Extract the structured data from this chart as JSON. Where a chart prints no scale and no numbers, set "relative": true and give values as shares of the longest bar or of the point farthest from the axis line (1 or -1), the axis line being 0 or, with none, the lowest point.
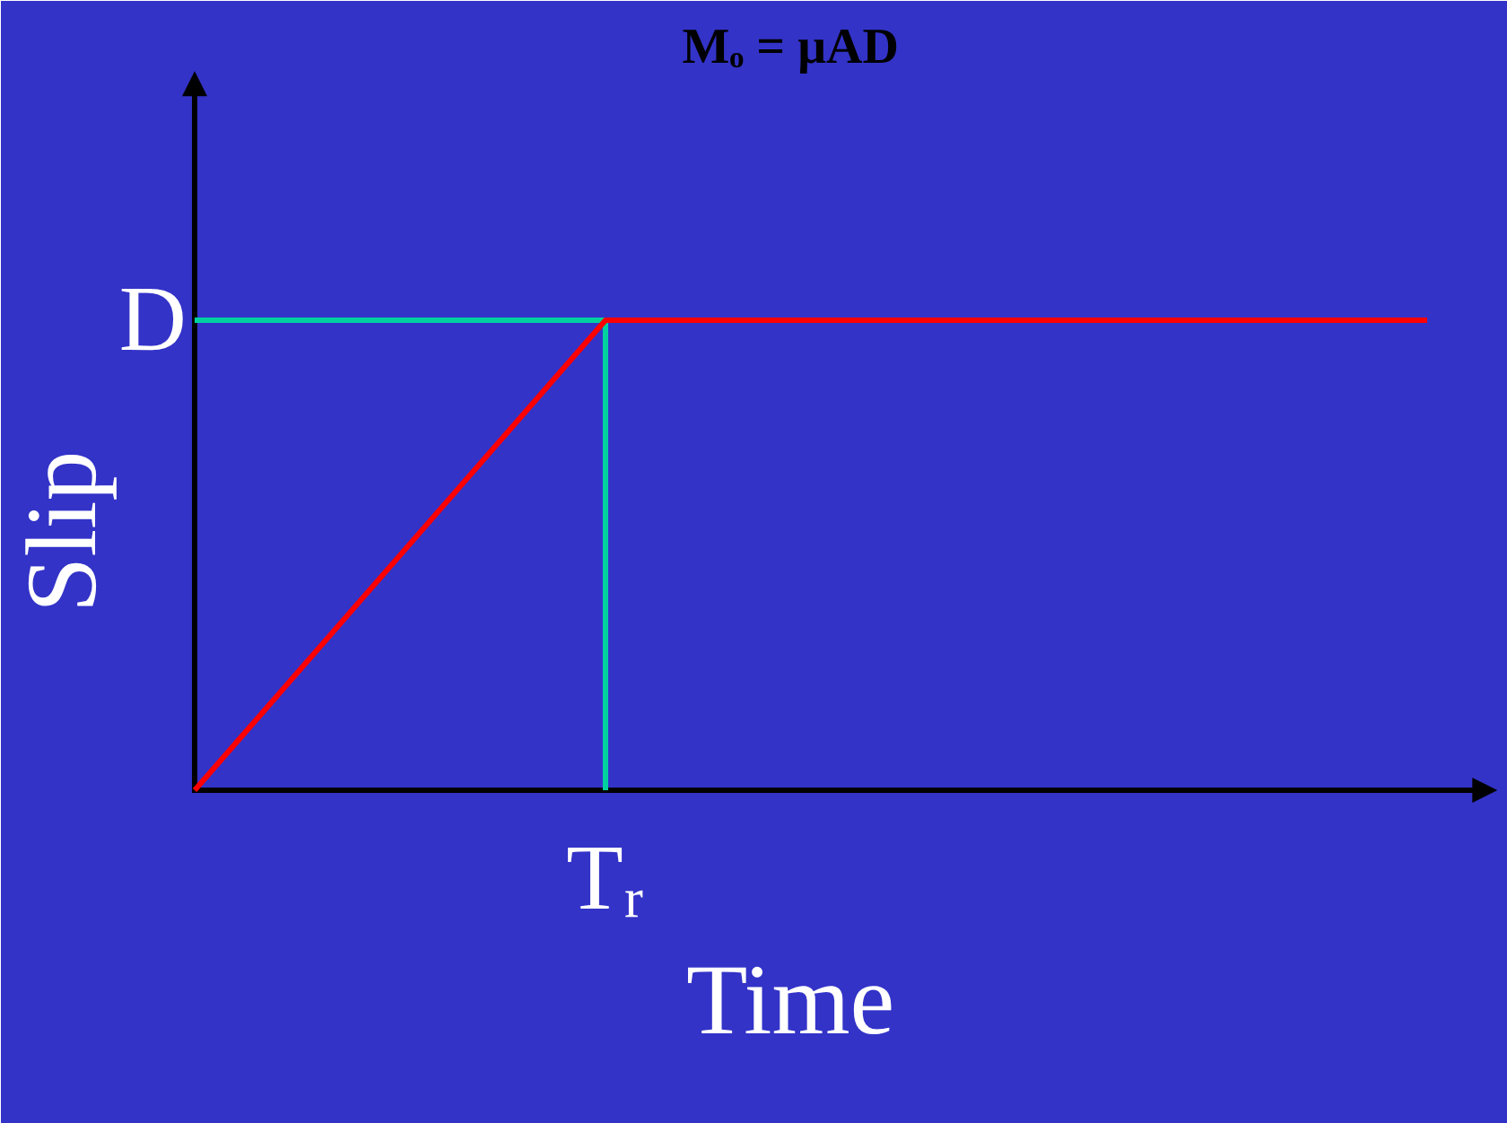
{
  "chart_data": {
    "type": "line",
    "title": "Mₒ = μAD",
    "xlabel": "Time",
    "ylabel": "Slip",
    "relative": true,
    "categories": [
      null,
      null,
      null,
      null
    ],
    "series": [
      {
        "color": "#ff0000",
        "values": [
          0,
          1,
          1,
          1
        ]
      }
    ],
    "annotations": [
      "Tᵣ"
    ],
    "ref_lines": [
      {
        "axis": "y",
        "value": 1,
        "label": "D",
        "color": "#00d0a0"
      }
    ]
  }
}
